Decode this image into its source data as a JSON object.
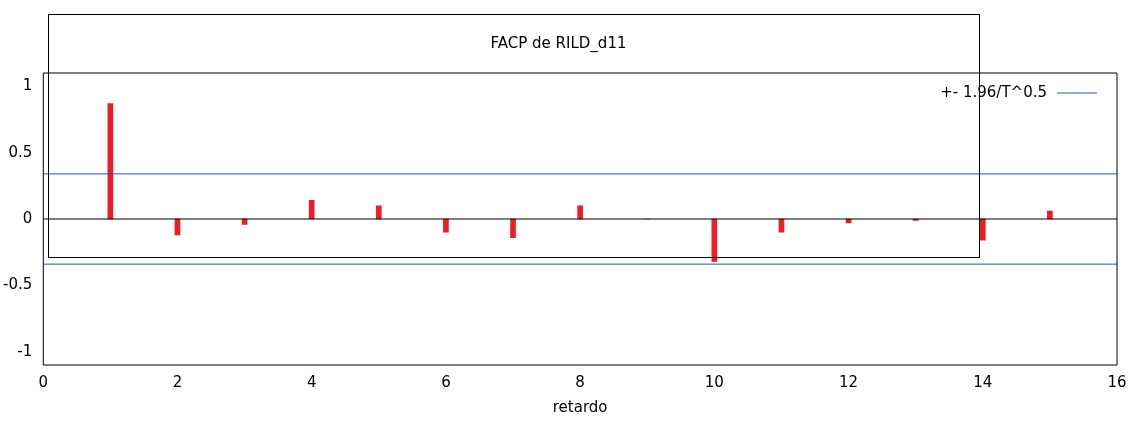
{
  "chart_data": {
    "type": "bar",
    "title": "FACP de RILD_d11",
    "xlabel": "retardo",
    "x": [
      1,
      2,
      3,
      4,
      5,
      6,
      7,
      8,
      9,
      10,
      11,
      12,
      13,
      14,
      15
    ],
    "values": [
      0.87,
      -0.12,
      -0.04,
      0.14,
      0.1,
      -0.1,
      -0.14,
      0.1,
      0.0,
      -0.32,
      -0.1,
      -0.03,
      -0.01,
      -0.16,
      0.06
    ],
    "color": "#ee1c24",
    "xlim": [
      0,
      16
    ],
    "xticks": [
      0,
      2,
      4,
      6,
      8,
      10,
      12,
      14,
      16
    ],
    "ylim": [
      -1.1,
      1.1
    ],
    "yticks": [
      -1,
      -0.5,
      0,
      0.5,
      1
    ],
    "ref_lines": [
      {
        "axis": "y",
        "value": 0.34,
        "label": "+- 1.96/T^0.5",
        "color": "#2a52be"
      },
      {
        "axis": "y",
        "value": -0.34,
        "color": "#2a52be"
      },
      {
        "axis": "y",
        "value": 0,
        "color": "#000000"
      }
    ],
    "legend": "top right",
    "grid": false
  }
}
